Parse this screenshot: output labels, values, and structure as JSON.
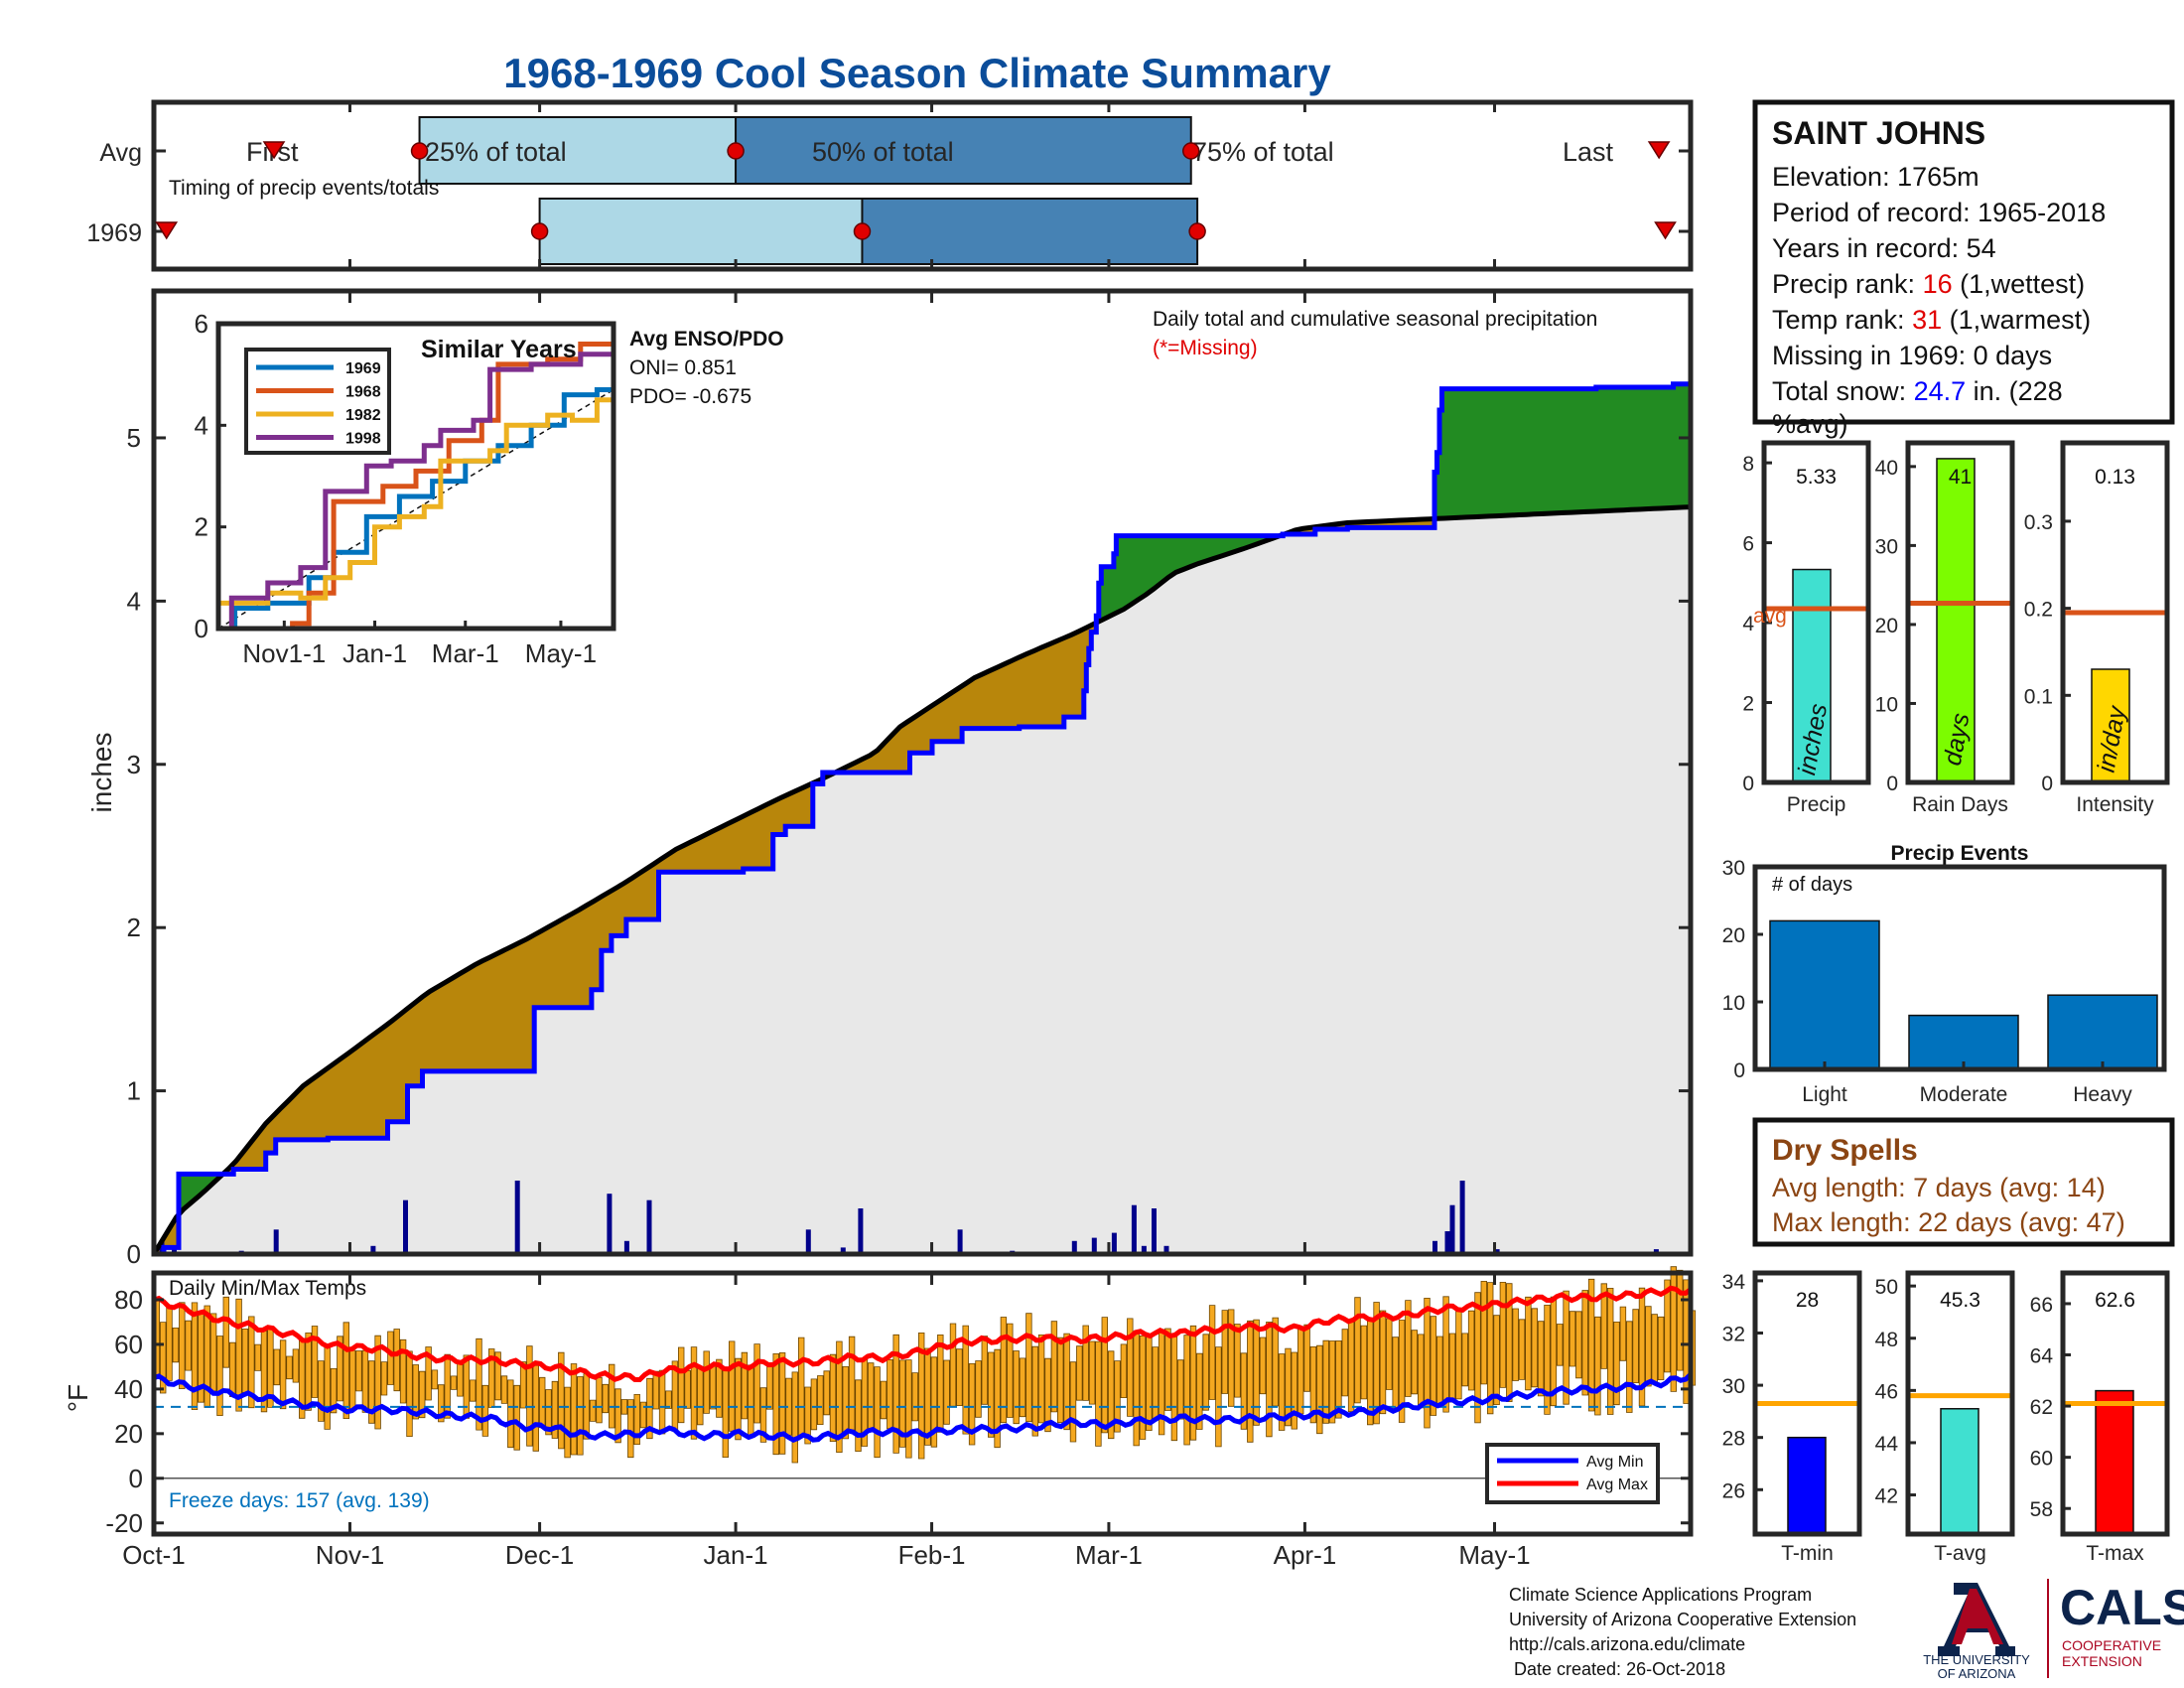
{
  "title": "1968-1969 Cool Season Climate Summary",
  "timing": {
    "row_labels": [
      "Avg",
      "1969"
    ],
    "first_label": "First",
    "last_label": "Last",
    "q25_label": "25% of total",
    "q50_label": "50% of total",
    "q75_label": "75% of total",
    "caption": "Timing of precip events/totals",
    "avg": {
      "first": "Oct-20",
      "q25": "Nov-12",
      "q50": "Jan-1",
      "q75": "Mar-14",
      "last": "May-27"
    },
    "yr": {
      "first": "Oct-3",
      "q25": "Dec-1",
      "q50": "Jan-21",
      "q75": "Mar-15",
      "last": "May-28"
    }
  },
  "main_chart": {
    "ylabel": "inches",
    "title": "Daily total and cumulative seasonal precipitation",
    "missing_note": "(*=Missing)",
    "yticks": [
      "0",
      "1",
      "2",
      "3",
      "4",
      "5"
    ],
    "ylim": [
      0,
      5.9
    ],
    "colors": {
      "above": "#228b22",
      "below": "#b8860b",
      "obs": "#0000ff",
      "avg": "#000000",
      "fill": "#e8e8e8",
      "bars": "#00008b"
    },
    "avg_cumulative": [
      [
        0,
        0.0
      ],
      [
        10,
        0.25
      ],
      [
        20,
        0.38
      ],
      [
        32,
        0.55
      ],
      [
        45,
        0.8
      ],
      [
        60,
        1.03
      ],
      [
        80,
        1.25
      ],
      [
        95,
        1.42
      ],
      [
        110,
        1.6
      ],
      [
        130,
        1.78
      ],
      [
        150,
        1.93
      ],
      [
        170,
        2.1
      ],
      [
        190,
        2.28
      ],
      [
        210,
        2.48
      ],
      [
        230,
        2.63
      ],
      [
        250,
        2.78
      ],
      [
        270,
        2.92
      ],
      [
        290,
        3.07
      ],
      [
        300,
        3.23
      ],
      [
        310,
        3.33
      ],
      [
        330,
        3.53
      ],
      [
        350,
        3.67
      ],
      [
        370,
        3.8
      ],
      [
        390,
        3.95
      ],
      [
        400,
        4.05
      ],
      [
        410,
        4.17
      ],
      [
        420,
        4.23
      ],
      [
        440,
        4.33
      ],
      [
        460,
        4.44
      ],
      [
        480,
        4.48
      ]
    ],
    "observed_steps": [
      [
        0,
        0.0
      ],
      [
        4,
        0.04
      ],
      [
        10,
        0.49
      ],
      [
        32,
        0.52
      ],
      [
        45,
        0.62
      ],
      [
        49,
        0.7
      ],
      [
        70,
        0.71
      ],
      [
        94,
        0.81
      ],
      [
        102,
        1.03
      ],
      [
        108,
        1.12
      ],
      [
        146,
        1.12
      ],
      [
        153,
        1.51
      ],
      [
        175,
        1.51
      ],
      [
        176,
        1.62
      ],
      [
        180,
        1.86
      ],
      [
        184,
        1.95
      ],
      [
        190,
        2.05
      ],
      [
        203,
        2.34
      ],
      [
        237,
        2.36
      ],
      [
        249,
        2.57
      ],
      [
        254,
        2.62
      ],
      [
        264,
        2.62
      ],
      [
        265,
        2.88
      ],
      [
        269,
        2.95
      ],
      [
        302,
        2.95
      ],
      [
        304,
        3.07
      ],
      [
        313,
        3.14
      ],
      [
        325,
        3.22
      ],
      [
        348,
        3.23
      ],
      [
        366,
        3.29
      ],
      [
        374,
        3.45
      ],
      [
        375,
        3.61
      ],
      [
        376,
        3.71
      ],
      [
        377,
        3.81
      ],
      [
        379,
        3.91
      ],
      [
        380,
        4.11
      ],
      [
        381,
        4.21
      ],
      [
        386,
        4.29
      ],
      [
        387,
        4.4
      ],
      [
        398,
        4.4
      ],
      [
        454,
        4.41
      ],
      [
        467,
        4.44
      ],
      [
        480,
        4.45
      ],
      [
        515,
        4.79
      ],
      [
        516,
        4.91
      ],
      [
        517,
        5.17
      ],
      [
        518,
        5.3
      ],
      [
        580,
        5.31
      ],
      [
        611,
        5.33
      ]
    ],
    "daily_bars": [
      [
        3,
        0.08
      ],
      [
        8,
        0.04
      ],
      [
        35,
        0.02
      ],
      [
        49,
        0.15
      ],
      [
        88,
        0.05
      ],
      [
        101,
        0.33
      ],
      [
        146,
        0.45
      ],
      [
        183,
        0.37
      ],
      [
        190,
        0.08
      ],
      [
        199,
        0.33
      ],
      [
        263,
        0.15
      ],
      [
        277,
        0.04
      ],
      [
        284,
        0.28
      ],
      [
        324,
        0.15
      ],
      [
        345,
        0.02
      ],
      [
        370,
        0.08
      ],
      [
        378,
        0.1
      ],
      [
        386,
        0.13
      ],
      [
        394,
        0.3
      ],
      [
        398,
        0.05
      ],
      [
        402,
        0.28
      ],
      [
        407,
        0.05
      ],
      [
        515,
        0.08
      ],
      [
        520,
        0.14
      ],
      [
        522,
        0.3
      ],
      [
        526,
        0.45
      ],
      [
        540,
        0.03
      ],
      [
        604,
        0.03
      ]
    ],
    "inset": {
      "title": "Similar Years",
      "legend": [
        "1969",
        "1968",
        "1982",
        "1998"
      ],
      "colors": [
        "#0072bd",
        "#d95319",
        "#edb120",
        "#7e2f8e"
      ],
      "xticks": [
        "Nov1-1",
        "Jan-1",
        "Mar-1",
        "May-1"
      ],
      "yticks": [
        "0",
        "2",
        "4",
        "6"
      ],
      "ylim": [
        0,
        6
      ],
      "series": [
        [
          [
            0,
            0
          ],
          [
            10,
            0.4
          ],
          [
            30,
            0.5
          ],
          [
            55,
            1.0
          ],
          [
            70,
            1.5
          ],
          [
            90,
            2.2
          ],
          [
            110,
            2.6
          ],
          [
            130,
            2.9
          ],
          [
            150,
            3.3
          ],
          [
            170,
            3.6
          ],
          [
            190,
            4.0
          ],
          [
            210,
            4.6
          ],
          [
            230,
            4.7
          ],
          [
            240,
            5.2
          ]
        ],
        [
          [
            0,
            0
          ],
          [
            20,
            0
          ],
          [
            45,
            0.1
          ],
          [
            55,
            0.7
          ],
          [
            70,
            2.5
          ],
          [
            100,
            2.8
          ],
          [
            120,
            3.1
          ],
          [
            140,
            3.7
          ],
          [
            160,
            4.1
          ],
          [
            170,
            5.2
          ],
          [
            200,
            5.3
          ],
          [
            220,
            5.6
          ],
          [
            240,
            5.8
          ]
        ],
        [
          [
            0,
            0.5
          ],
          [
            30,
            0.7
          ],
          [
            50,
            0.6
          ],
          [
            65,
            1.0
          ],
          [
            80,
            1.3
          ],
          [
            95,
            2.0
          ],
          [
            110,
            2.2
          ],
          [
            125,
            2.4
          ],
          [
            135,
            3.3
          ],
          [
            165,
            3.5
          ],
          [
            175,
            4.0
          ],
          [
            200,
            4.2
          ],
          [
            215,
            4.1
          ],
          [
            230,
            4.5
          ],
          [
            240,
            5.3
          ]
        ],
        [
          [
            0,
            0
          ],
          [
            8,
            0.6
          ],
          [
            30,
            0.9
          ],
          [
            50,
            1.2
          ],
          [
            65,
            2.7
          ],
          [
            90,
            3.2
          ],
          [
            105,
            3.3
          ],
          [
            125,
            3.6
          ],
          [
            135,
            3.9
          ],
          [
            155,
            4.1
          ],
          [
            165,
            5.1
          ],
          [
            190,
            5.2
          ],
          [
            220,
            5.4
          ],
          [
            240,
            5.6
          ]
        ]
      ]
    },
    "enso": {
      "title": "Avg ENSO/PDO",
      "oni": "ONI= 0.851",
      "pdo": "PDO= -0.675"
    }
  },
  "info": {
    "station": "SAINT JOHNS",
    "elevation": "Elevation: 1765m",
    "period": "Period of record: 1965-2018",
    "years": "Years in record: 54",
    "precip_rank_pre": "Precip rank: ",
    "precip_rank_val": "16",
    "precip_rank_post": " (1,wettest)",
    "temp_rank_pre": "Temp rank: ",
    "temp_rank_val": "31",
    "temp_rank_post": " (1,warmest)",
    "missing": "Missing in 1969: 0 days",
    "snow_pre": "Total snow: ",
    "snow_val": "24.7",
    "snow_post": " in. (228",
    "snow_pct": "%avg)"
  },
  "small_bars": [
    {
      "xlabel": "Precip",
      "value": 5.33,
      "value_label": "5.33",
      "avg": 4.35,
      "avg_label": "avg",
      "unit": "inches",
      "color": "#40e0d0",
      "ylim": [
        0,
        8.5
      ],
      "yticks": [
        "0",
        "2",
        "4",
        "6",
        "8"
      ],
      "tickvals": [
        0,
        2,
        4,
        6,
        8
      ]
    },
    {
      "xlabel": "Rain Days",
      "value": 41,
      "value_label": "41",
      "avg": 22.7,
      "unit": "days",
      "color": "#7cfc00",
      "ylim": [
        0,
        43
      ],
      "yticks": [
        "0",
        "10",
        "20",
        "30",
        "40"
      ],
      "tickvals": [
        0,
        10,
        20,
        30,
        40
      ]
    },
    {
      "xlabel": "Intensity",
      "value": 0.13,
      "value_label": "0.13",
      "avg": 0.195,
      "unit": "in/day",
      "color": "#ffd700",
      "ylim": [
        0,
        0.39
      ],
      "yticks": [
        "0",
        "0.1",
        "0.2",
        "0.3"
      ],
      "tickvals": [
        0,
        0.1,
        0.2,
        0.3
      ]
    }
  ],
  "precip_events": {
    "title": "Precip Events",
    "ylabel": "# of days",
    "categories": [
      "Light",
      "Moderate",
      "Heavy"
    ],
    "values": [
      22,
      8,
      11
    ],
    "yticks": [
      "0",
      "10",
      "20",
      "30"
    ],
    "ylim": [
      0,
      30
    ],
    "color": "#0072bd"
  },
  "dry_spells": {
    "title": "Dry Spells",
    "avg_length": "Avg length: 7 days (avg: 14)",
    "max_length": "Max length: 22 days (avg: 47)",
    "color": "#8b4513"
  },
  "temp_chart": {
    "title": "Daily Min/Max Temps",
    "ylabel": "°F",
    "yticks": [
      "80",
      "60",
      "40",
      "20",
      "0",
      "-20"
    ],
    "ylim": [
      -25,
      92
    ],
    "freeze_text": "Freeze days: 157 (avg. 139)",
    "legend_min": "Avg Min",
    "legend_max": "Avg Max",
    "avg_max": [
      [
        0,
        80
      ],
      [
        15,
        75
      ],
      [
        30,
        70
      ],
      [
        45,
        67
      ],
      [
        60,
        63
      ],
      [
        75,
        59
      ],
      [
        90,
        58
      ],
      [
        105,
        55
      ],
      [
        120,
        53
      ],
      [
        135,
        53
      ],
      [
        150,
        51
      ],
      [
        160,
        50
      ],
      [
        170,
        48
      ],
      [
        180,
        46
      ],
      [
        195,
        45
      ],
      [
        205,
        48
      ],
      [
        220,
        50
      ],
      [
        235,
        50
      ],
      [
        250,
        52
      ],
      [
        265,
        52
      ],
      [
        280,
        54
      ],
      [
        295,
        54
      ],
      [
        310,
        57
      ],
      [
        325,
        61
      ],
      [
        340,
        62
      ],
      [
        355,
        63
      ],
      [
        370,
        62
      ],
      [
        385,
        63
      ],
      [
        400,
        65
      ],
      [
        415,
        65
      ],
      [
        430,
        67
      ],
      [
        445,
        68
      ],
      [
        460,
        67
      ],
      [
        475,
        71
      ],
      [
        490,
        72
      ],
      [
        505,
        73
      ],
      [
        520,
        76
      ],
      [
        535,
        77
      ],
      [
        550,
        79
      ],
      [
        565,
        81
      ],
      [
        580,
        81
      ],
      [
        595,
        82
      ],
      [
        610,
        84
      ],
      [
        620,
        84
      ]
    ],
    "avg_min": [
      [
        0,
        45
      ],
      [
        15,
        41
      ],
      [
        30,
        38
      ],
      [
        45,
        36
      ],
      [
        60,
        33
      ],
      [
        75,
        31
      ],
      [
        90,
        31
      ],
      [
        105,
        30
      ],
      [
        120,
        28
      ],
      [
        135,
        27
      ],
      [
        150,
        23
      ],
      [
        160,
        23
      ],
      [
        170,
        20
      ],
      [
        180,
        19
      ],
      [
        195,
        20
      ],
      [
        205,
        22
      ],
      [
        220,
        19
      ],
      [
        235,
        20
      ],
      [
        250,
        19
      ],
      [
        265,
        18
      ],
      [
        280,
        20
      ],
      [
        295,
        21
      ],
      [
        310,
        20
      ],
      [
        325,
        22
      ],
      [
        340,
        22
      ],
      [
        355,
        23
      ],
      [
        370,
        25
      ],
      [
        385,
        24
      ],
      [
        400,
        26
      ],
      [
        415,
        27
      ],
      [
        430,
        26
      ],
      [
        445,
        27
      ],
      [
        460,
        28
      ],
      [
        475,
        29
      ],
      [
        490,
        30
      ],
      [
        505,
        32
      ],
      [
        520,
        34
      ],
      [
        535,
        35
      ],
      [
        550,
        37
      ],
      [
        565,
        39
      ],
      [
        580,
        40
      ],
      [
        595,
        41
      ],
      [
        610,
        43
      ],
      [
        620,
        46
      ]
    ],
    "freeze_line": 32,
    "bar_color": "#f4a820",
    "min_color": "#0000ff",
    "max_color": "#ff0000"
  },
  "xaxis": {
    "labels": [
      "Oct-1",
      "Nov-1",
      "Dec-1",
      "Jan-1",
      "Feb-1",
      "Mar-1",
      "Apr-1",
      "May-1"
    ],
    "days": [
      0,
      31,
      61,
      92,
      123,
      151,
      182,
      212
    ],
    "total_days": 243
  },
  "small_temps": [
    {
      "xlabel": "T-min",
      "value": 28,
      "value_label": "28",
      "avg": 29.3,
      "color": "#0000ff",
      "ylim": [
        24.3,
        34.3
      ],
      "yticks": [
        "26",
        "28",
        "30",
        "32",
        "34"
      ],
      "tickvals": [
        26,
        28,
        30,
        32,
        34
      ]
    },
    {
      "xlabel": "T-avg",
      "value": 45.3,
      "value_label": "45.3",
      "avg": 45.8,
      "color": "#40e0d0",
      "ylim": [
        40.5,
        50.5
      ],
      "yticks": [
        "42",
        "44",
        "46",
        "48",
        "50"
      ],
      "tickvals": [
        42,
        44,
        46,
        48,
        50
      ]
    },
    {
      "xlabel": "T-max",
      "value": 62.6,
      "value_label": "62.6",
      "avg": 62.1,
      "color": "#ff0000",
      "ylim": [
        57,
        67.2
      ],
      "yticks": [
        "58",
        "60",
        "62",
        "64",
        "66"
      ],
      "tickvals": [
        58,
        60,
        62,
        64,
        66
      ]
    }
  ],
  "footer": {
    "line1": "Climate Science Applications Program",
    "line2": "University of Arizona Cooperative Extension",
    "line3": "http://cals.arizona.edu/climate",
    "line4": " Date created: 26-Oct-2018",
    "ua_line1": "THE UNIVERSITY",
    "ua_line2": "OF ARIZONA",
    "cals": "CALS",
    "cals_sub1": "COOPERATIVE",
    "cals_sub2": "EXTENSION"
  }
}
